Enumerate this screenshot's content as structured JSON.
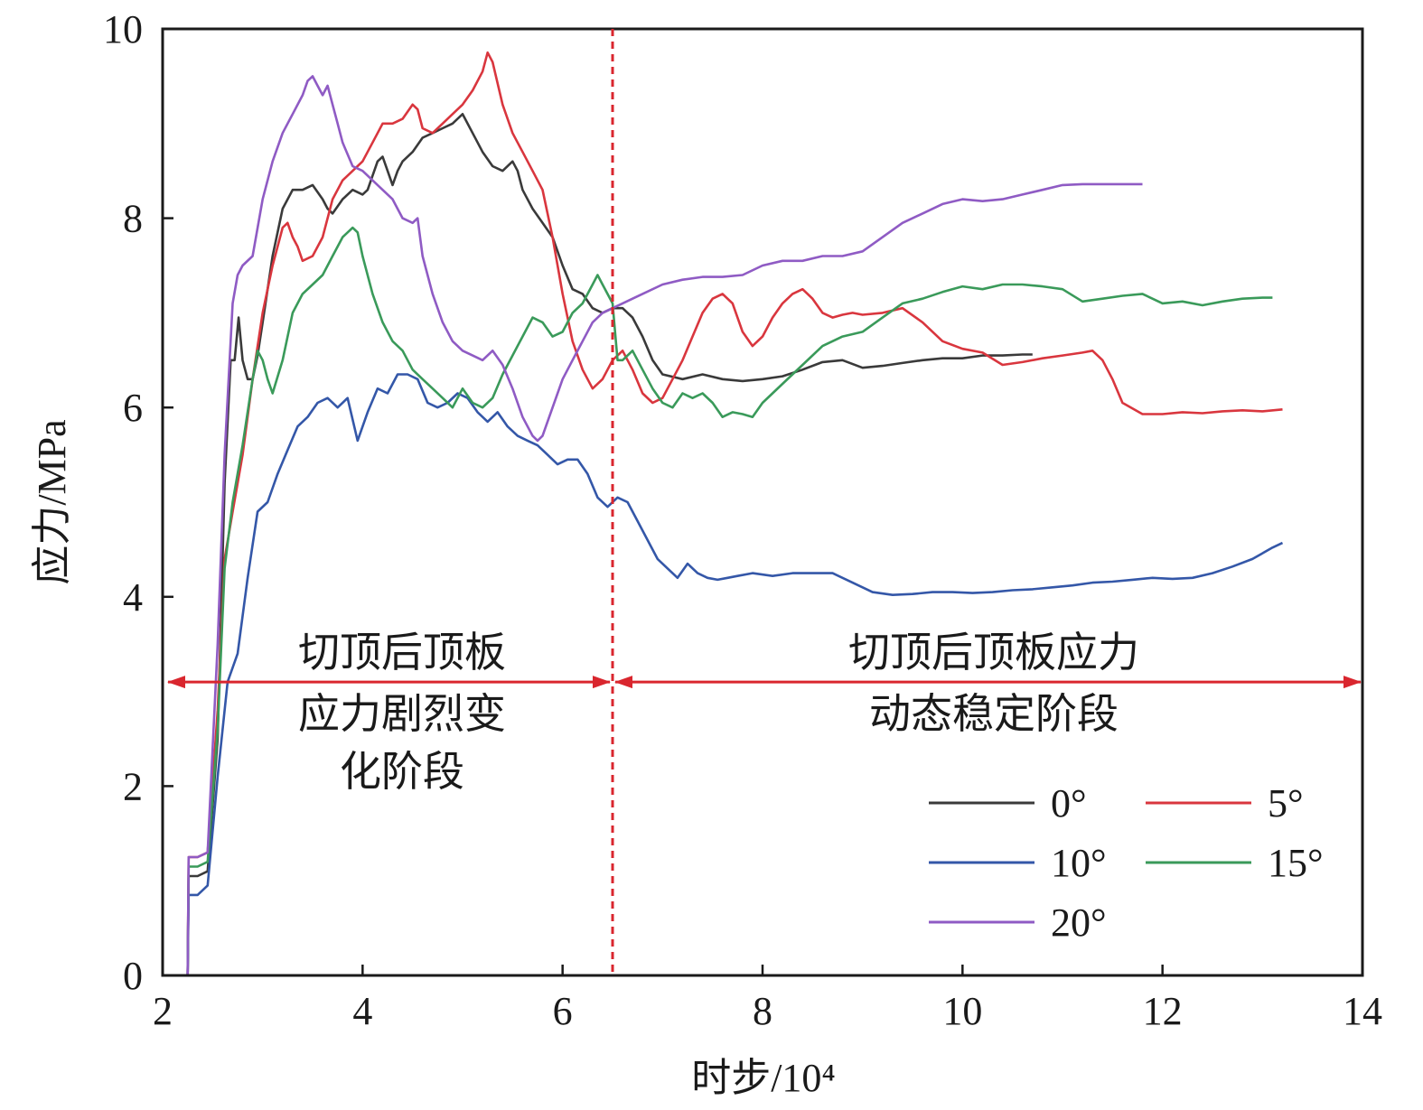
{
  "chart_data": {
    "type": "line",
    "xlabel": "时步/10⁴",
    "ylabel": "应力/MPa",
    "xlim": [
      2,
      14
    ],
    "ylim": [
      0,
      10
    ],
    "xticks": [
      "2",
      "4",
      "6",
      "8",
      "10",
      "12",
      "14"
    ],
    "yticks": [
      "0",
      "2",
      "4",
      "6",
      "8",
      "10"
    ],
    "grid": false,
    "legend_position": "bottom-right",
    "divider_x": 6.5,
    "stage_arrow_y": 3.1,
    "annotations": [
      {
        "id": "stage1",
        "lines": [
          "切顶后顶板",
          "应力剧烈变",
          "化阶段"
        ]
      },
      {
        "id": "stage2",
        "lines": [
          "切顶后顶板应力",
          "动态稳定阶段"
        ]
      }
    ],
    "series": [
      {
        "name": "0°",
        "color": "#3a3a3a",
        "x": [
          2.25,
          2.26,
          2.35,
          2.45,
          2.55,
          2.62,
          2.68,
          2.72,
          2.76,
          2.8,
          2.85,
          2.9,
          2.95,
          3.0,
          3.1,
          3.2,
          3.3,
          3.4,
          3.5,
          3.6,
          3.65,
          3.7,
          3.8,
          3.9,
          4.0,
          4.05,
          4.1,
          4.15,
          4.2,
          4.25,
          4.3,
          4.35,
          4.4,
          4.5,
          4.6,
          4.7,
          4.8,
          4.9,
          5.0,
          5.1,
          5.2,
          5.3,
          5.4,
          5.5,
          5.55,
          5.6,
          5.7,
          5.8,
          5.9,
          6.0,
          6.1,
          6.2,
          6.3,
          6.4,
          6.5,
          6.6,
          6.7,
          6.8,
          6.9,
          7.0,
          7.2,
          7.4,
          7.6,
          7.8,
          8.0,
          8.2,
          8.4,
          8.6,
          8.8,
          9.0,
          9.2,
          9.4,
          9.6,
          9.8,
          10.0,
          10.2,
          10.4,
          10.6,
          10.7
        ],
        "y": [
          0.0,
          1.05,
          1.05,
          1.1,
          2.5,
          5.2,
          6.5,
          6.5,
          6.95,
          6.5,
          6.3,
          6.3,
          6.55,
          6.9,
          7.6,
          8.1,
          8.3,
          8.3,
          8.35,
          8.2,
          8.1,
          8.05,
          8.2,
          8.3,
          8.25,
          8.3,
          8.45,
          8.6,
          8.65,
          8.5,
          8.35,
          8.5,
          8.6,
          8.7,
          8.85,
          8.9,
          8.95,
          9.0,
          9.1,
          8.9,
          8.7,
          8.55,
          8.5,
          8.6,
          8.5,
          8.3,
          8.1,
          7.95,
          7.8,
          7.5,
          7.25,
          7.2,
          7.05,
          7.0,
          7.05,
          7.05,
          6.95,
          6.75,
          6.5,
          6.35,
          6.3,
          6.35,
          6.3,
          6.28,
          6.3,
          6.33,
          6.4,
          6.48,
          6.5,
          6.42,
          6.44,
          6.47,
          6.5,
          6.52,
          6.52,
          6.55,
          6.55,
          6.56,
          6.56
        ]
      },
      {
        "name": "5°",
        "color": "#d9363e",
        "x": [
          2.25,
          2.26,
          2.35,
          2.45,
          2.55,
          2.62,
          2.7,
          2.8,
          2.9,
          3.0,
          3.1,
          3.2,
          3.25,
          3.3,
          3.35,
          3.4,
          3.5,
          3.6,
          3.7,
          3.8,
          3.9,
          4.0,
          4.1,
          4.2,
          4.3,
          4.4,
          4.5,
          4.55,
          4.6,
          4.7,
          4.8,
          4.9,
          5.0,
          5.1,
          5.2,
          5.25,
          5.3,
          5.4,
          5.5,
          5.6,
          5.7,
          5.8,
          5.9,
          6.0,
          6.1,
          6.2,
          6.3,
          6.4,
          6.5,
          6.6,
          6.7,
          6.8,
          6.9,
          7.0,
          7.1,
          7.2,
          7.3,
          7.4,
          7.5,
          7.6,
          7.7,
          7.8,
          7.9,
          8.0,
          8.1,
          8.2,
          8.3,
          8.4,
          8.5,
          8.6,
          8.7,
          8.8,
          8.9,
          9.0,
          9.2,
          9.4,
          9.6,
          9.8,
          10.0,
          10.2,
          10.4,
          10.6,
          10.8,
          11.0,
          11.2,
          11.3,
          11.4,
          11.5,
          11.6,
          11.8,
          12.0,
          12.2,
          12.4,
          12.6,
          12.8,
          13.0,
          13.2
        ],
        "y": [
          0.0,
          1.25,
          1.25,
          1.3,
          2.8,
          4.4,
          4.9,
          5.5,
          6.3,
          7.0,
          7.5,
          7.9,
          7.95,
          7.8,
          7.7,
          7.55,
          7.6,
          7.8,
          8.2,
          8.4,
          8.5,
          8.6,
          8.8,
          9.0,
          9.0,
          9.05,
          9.2,
          9.15,
          8.95,
          8.9,
          9.0,
          9.1,
          9.2,
          9.35,
          9.55,
          9.75,
          9.65,
          9.2,
          8.9,
          8.7,
          8.5,
          8.3,
          7.8,
          7.2,
          6.7,
          6.4,
          6.2,
          6.3,
          6.5,
          6.6,
          6.4,
          6.15,
          6.05,
          6.1,
          6.3,
          6.5,
          6.75,
          7.0,
          7.15,
          7.2,
          7.1,
          6.8,
          6.65,
          6.75,
          6.95,
          7.1,
          7.2,
          7.25,
          7.15,
          7.0,
          6.95,
          6.98,
          7.0,
          6.98,
          7.0,
          7.05,
          6.9,
          6.7,
          6.62,
          6.58,
          6.45,
          6.48,
          6.52,
          6.55,
          6.58,
          6.6,
          6.5,
          6.3,
          6.05,
          5.93,
          5.93,
          5.95,
          5.94,
          5.96,
          5.97,
          5.96,
          5.98
        ]
      },
      {
        "name": "10°",
        "color": "#3457a8",
        "x": [
          2.25,
          2.26,
          2.35,
          2.45,
          2.55,
          2.65,
          2.75,
          2.85,
          2.95,
          3.05,
          3.15,
          3.25,
          3.35,
          3.45,
          3.55,
          3.65,
          3.75,
          3.85,
          3.95,
          4.05,
          4.15,
          4.25,
          4.35,
          4.45,
          4.55,
          4.65,
          4.75,
          4.85,
          4.95,
          5.05,
          5.15,
          5.25,
          5.35,
          5.45,
          5.55,
          5.65,
          5.75,
          5.85,
          5.95,
          6.05,
          6.15,
          6.25,
          6.35,
          6.45,
          6.55,
          6.65,
          6.75,
          6.85,
          6.95,
          7.05,
          7.15,
          7.25,
          7.35,
          7.45,
          7.55,
          7.65,
          7.75,
          7.9,
          8.1,
          8.3,
          8.5,
          8.7,
          8.9,
          9.1,
          9.3,
          9.5,
          9.7,
          9.9,
          10.1,
          10.3,
          10.5,
          10.7,
          10.9,
          11.1,
          11.3,
          11.5,
          11.7,
          11.9,
          12.1,
          12.3,
          12.5,
          12.7,
          12.9,
          13.1,
          13.2
        ],
        "y": [
          0.0,
          0.85,
          0.85,
          0.95,
          2.1,
          3.1,
          3.4,
          4.2,
          4.9,
          5.0,
          5.3,
          5.55,
          5.8,
          5.9,
          6.05,
          6.1,
          6.0,
          6.1,
          5.65,
          5.95,
          6.2,
          6.15,
          6.35,
          6.35,
          6.3,
          6.05,
          6.0,
          6.05,
          6.15,
          6.1,
          5.95,
          5.85,
          5.95,
          5.8,
          5.7,
          5.65,
          5.6,
          5.5,
          5.4,
          5.45,
          5.45,
          5.3,
          5.05,
          4.95,
          5.05,
          5.0,
          4.8,
          4.6,
          4.4,
          4.3,
          4.2,
          4.35,
          4.25,
          4.2,
          4.18,
          4.2,
          4.22,
          4.25,
          4.22,
          4.25,
          4.25,
          4.25,
          4.15,
          4.05,
          4.02,
          4.03,
          4.05,
          4.05,
          4.04,
          4.05,
          4.07,
          4.08,
          4.1,
          4.12,
          4.15,
          4.16,
          4.18,
          4.2,
          4.19,
          4.2,
          4.25,
          4.32,
          4.4,
          4.52,
          4.57
        ]
      },
      {
        "name": "15°",
        "color": "#3a9a5a",
        "x": [
          2.25,
          2.26,
          2.35,
          2.45,
          2.55,
          2.62,
          2.7,
          2.8,
          2.9,
          2.95,
          3.0,
          3.05,
          3.1,
          3.2,
          3.3,
          3.4,
          3.5,
          3.6,
          3.7,
          3.8,
          3.9,
          3.95,
          4.0,
          4.1,
          4.2,
          4.3,
          4.4,
          4.5,
          4.6,
          4.7,
          4.8,
          4.9,
          5.0,
          5.1,
          5.2,
          5.3,
          5.4,
          5.5,
          5.6,
          5.7,
          5.8,
          5.9,
          6.0,
          6.1,
          6.2,
          6.3,
          6.35,
          6.4,
          6.5,
          6.55,
          6.6,
          6.7,
          6.8,
          6.9,
          7.0,
          7.1,
          7.2,
          7.3,
          7.4,
          7.5,
          7.6,
          7.7,
          7.8,
          7.9,
          8.0,
          8.2,
          8.4,
          8.6,
          8.8,
          9.0,
          9.2,
          9.4,
          9.6,
          9.8,
          10.0,
          10.2,
          10.4,
          10.6,
          10.8,
          11.0,
          11.2,
          11.4,
          11.6,
          11.8,
          12.0,
          12.2,
          12.4,
          12.6,
          12.8,
          13.0,
          13.1
        ],
        "y": [
          0.0,
          1.15,
          1.15,
          1.2,
          2.6,
          4.3,
          5.0,
          5.6,
          6.3,
          6.6,
          6.5,
          6.3,
          6.15,
          6.5,
          7.0,
          7.2,
          7.3,
          7.4,
          7.6,
          7.8,
          7.9,
          7.85,
          7.6,
          7.2,
          6.9,
          6.7,
          6.6,
          6.4,
          6.3,
          6.2,
          6.1,
          6.0,
          6.2,
          6.05,
          6.0,
          6.1,
          6.35,
          6.55,
          6.75,
          6.95,
          6.9,
          6.75,
          6.8,
          7.0,
          7.1,
          7.3,
          7.4,
          7.3,
          7.1,
          6.5,
          6.5,
          6.6,
          6.4,
          6.2,
          6.05,
          6.0,
          6.15,
          6.1,
          6.15,
          6.05,
          5.9,
          5.95,
          5.93,
          5.9,
          6.05,
          6.25,
          6.45,
          6.65,
          6.75,
          6.8,
          6.95,
          7.1,
          7.15,
          7.22,
          7.28,
          7.25,
          7.3,
          7.3,
          7.28,
          7.25,
          7.12,
          7.15,
          7.18,
          7.2,
          7.1,
          7.12,
          7.08,
          7.12,
          7.15,
          7.16,
          7.16
        ]
      },
      {
        "name": "20°",
        "color": "#8f5bc4",
        "x": [
          2.25,
          2.26,
          2.35,
          2.45,
          2.55,
          2.62,
          2.7,
          2.75,
          2.8,
          2.9,
          3.0,
          3.1,
          3.2,
          3.3,
          3.4,
          3.45,
          3.5,
          3.55,
          3.6,
          3.65,
          3.7,
          3.75,
          3.8,
          3.9,
          4.0,
          4.1,
          4.2,
          4.3,
          4.4,
          4.5,
          4.55,
          4.6,
          4.7,
          4.8,
          4.9,
          5.0,
          5.1,
          5.2,
          5.3,
          5.4,
          5.5,
          5.6,
          5.7,
          5.75,
          5.8,
          5.9,
          6.0,
          6.1,
          6.2,
          6.3,
          6.4,
          6.5,
          6.6,
          6.7,
          6.8,
          7.0,
          7.2,
          7.4,
          7.6,
          7.8,
          8.0,
          8.2,
          8.4,
          8.6,
          8.8,
          9.0,
          9.2,
          9.4,
          9.6,
          9.8,
          10.0,
          10.2,
          10.4,
          10.6,
          10.8,
          11.0,
          11.2,
          11.4,
          11.6,
          11.8
        ],
        "y": [
          0.0,
          1.25,
          1.25,
          1.3,
          3.5,
          5.5,
          7.1,
          7.4,
          7.5,
          7.6,
          8.2,
          8.6,
          8.9,
          9.1,
          9.3,
          9.45,
          9.5,
          9.4,
          9.3,
          9.4,
          9.2,
          9.0,
          8.8,
          8.55,
          8.5,
          8.4,
          8.3,
          8.2,
          8.0,
          7.95,
          8.0,
          7.6,
          7.2,
          6.9,
          6.7,
          6.6,
          6.55,
          6.5,
          6.6,
          6.45,
          6.2,
          5.9,
          5.7,
          5.65,
          5.7,
          6.0,
          6.3,
          6.5,
          6.7,
          6.9,
          7.0,
          7.05,
          7.1,
          7.15,
          7.2,
          7.3,
          7.35,
          7.38,
          7.38,
          7.4,
          7.5,
          7.55,
          7.55,
          7.6,
          7.6,
          7.65,
          7.8,
          7.95,
          8.05,
          8.15,
          8.2,
          8.18,
          8.2,
          8.25,
          8.3,
          8.35,
          8.36,
          8.36,
          8.36,
          8.36
        ]
      }
    ]
  }
}
